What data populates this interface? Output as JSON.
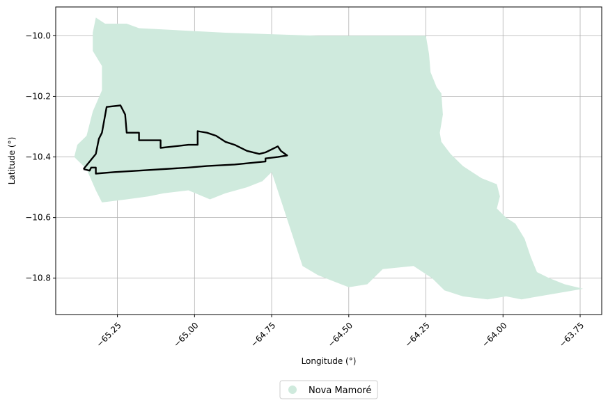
{
  "chart_data": {
    "type": "map",
    "xlabel": "Longitude (°)",
    "ylabel": "Latitude (°)",
    "xlim": [
      -65.45,
      -63.68
    ],
    "ylim": [
      -10.92,
      -9.905
    ],
    "x_ticks": [
      -65.25,
      -65.0,
      -64.75,
      -64.5,
      -64.25,
      -64.0,
      -63.75
    ],
    "x_tick_labels": [
      "−65.25",
      "−65.00",
      "−64.75",
      "−64.50",
      "−64.25",
      "−64.00",
      "−63.75"
    ],
    "y_ticks": [
      -10.0,
      -10.2,
      -10.4,
      -10.6,
      -10.8
    ],
    "y_tick_labels": [
      "−10.0",
      "−10.2",
      "−10.4",
      "−10.6",
      "−10.8"
    ],
    "grid": true,
    "legend": {
      "placement": "bottom-center",
      "entries": [
        {
          "label": "Nova Mamoré",
          "color": "#cfeadd"
        }
      ]
    },
    "layers": [
      {
        "name": "Nova Mamoré",
        "fill": "#cfeadd",
        "kind": "polygon",
        "coords": [
          [
            -65.32,
            -9.94
          ],
          [
            -65.29,
            -9.96
          ],
          [
            -65.22,
            -9.96
          ],
          [
            -65.18,
            -9.975
          ],
          [
            -64.9,
            -9.99
          ],
          [
            -64.6,
            -10.0
          ],
          [
            -64.25,
            -10.0
          ],
          [
            -64.24,
            -10.06
          ],
          [
            -64.235,
            -10.12
          ],
          [
            -64.215,
            -10.17
          ],
          [
            -64.2,
            -10.19
          ],
          [
            -64.195,
            -10.26
          ],
          [
            -64.205,
            -10.32
          ],
          [
            -64.2,
            -10.35
          ],
          [
            -64.17,
            -10.39
          ],
          [
            -64.13,
            -10.43
          ],
          [
            -64.07,
            -10.47
          ],
          [
            -64.02,
            -10.49
          ],
          [
            -64.01,
            -10.53
          ],
          [
            -64.02,
            -10.57
          ],
          [
            -63.99,
            -10.6
          ],
          [
            -63.96,
            -10.62
          ],
          [
            -63.93,
            -10.67
          ],
          [
            -63.91,
            -10.73
          ],
          [
            -63.89,
            -10.78
          ],
          [
            -63.85,
            -10.8
          ],
          [
            -63.8,
            -10.82
          ],
          [
            -63.74,
            -10.835
          ],
          [
            -63.94,
            -10.87
          ],
          [
            -63.99,
            -10.86
          ],
          [
            -64.05,
            -10.87
          ],
          [
            -64.13,
            -10.86
          ],
          [
            -64.19,
            -10.84
          ],
          [
            -64.23,
            -10.8
          ],
          [
            -64.29,
            -10.76
          ],
          [
            -64.39,
            -10.77
          ],
          [
            -64.44,
            -10.82
          ],
          [
            -64.5,
            -10.83
          ],
          [
            -64.55,
            -10.81
          ],
          [
            -64.6,
            -10.79
          ],
          [
            -64.65,
            -10.76
          ],
          [
            -64.75,
            -10.45
          ],
          [
            -64.78,
            -10.48
          ],
          [
            -64.83,
            -10.5
          ],
          [
            -64.9,
            -10.52
          ],
          [
            -64.95,
            -10.54
          ],
          [
            -65.02,
            -10.51
          ],
          [
            -65.1,
            -10.52
          ],
          [
            -65.15,
            -10.53
          ],
          [
            -65.22,
            -10.54
          ],
          [
            -65.3,
            -10.55
          ],
          [
            -65.32,
            -10.51
          ],
          [
            -65.35,
            -10.44
          ],
          [
            -65.39,
            -10.4
          ],
          [
            -65.38,
            -10.36
          ],
          [
            -65.35,
            -10.33
          ],
          [
            -65.33,
            -10.25
          ],
          [
            -65.3,
            -10.18
          ],
          [
            -65.3,
            -10.1
          ],
          [
            -65.33,
            -10.05
          ],
          [
            -65.33,
            -9.99
          ]
        ]
      },
      {
        "name": "outline",
        "stroke": "#000000",
        "kind": "polyline",
        "coords": [
          [
            -65.36,
            -10.44
          ],
          [
            -65.32,
            -10.39
          ],
          [
            -65.31,
            -10.34
          ],
          [
            -65.3,
            -10.32
          ],
          [
            -65.285,
            -10.235
          ],
          [
            -65.24,
            -10.23
          ],
          [
            -65.225,
            -10.26
          ],
          [
            -65.22,
            -10.32
          ],
          [
            -65.18,
            -10.32
          ],
          [
            -65.18,
            -10.345
          ],
          [
            -65.11,
            -10.345
          ],
          [
            -65.11,
            -10.37
          ],
          [
            -65.02,
            -10.36
          ],
          [
            -64.99,
            -10.36
          ],
          [
            -64.99,
            -10.315
          ],
          [
            -64.96,
            -10.32
          ],
          [
            -64.93,
            -10.33
          ],
          [
            -64.9,
            -10.35
          ],
          [
            -64.87,
            -10.36
          ],
          [
            -64.83,
            -10.38
          ],
          [
            -64.79,
            -10.39
          ],
          [
            -64.77,
            -10.385
          ],
          [
            -64.73,
            -10.365
          ],
          [
            -64.72,
            -10.38
          ],
          [
            -64.7,
            -10.395
          ],
          [
            -64.73,
            -10.4
          ],
          [
            -64.77,
            -10.405
          ],
          [
            -64.77,
            -10.415
          ],
          [
            -64.87,
            -10.425
          ],
          [
            -64.96,
            -10.43
          ],
          [
            -65.02,
            -10.435
          ],
          [
            -65.1,
            -10.44
          ],
          [
            -65.18,
            -10.445
          ],
          [
            -65.26,
            -10.45
          ],
          [
            -65.32,
            -10.455
          ],
          [
            -65.32,
            -10.435
          ],
          [
            -65.335,
            -10.435
          ],
          [
            -65.34,
            -10.445
          ],
          [
            -65.36,
            -10.44
          ]
        ]
      }
    ]
  }
}
